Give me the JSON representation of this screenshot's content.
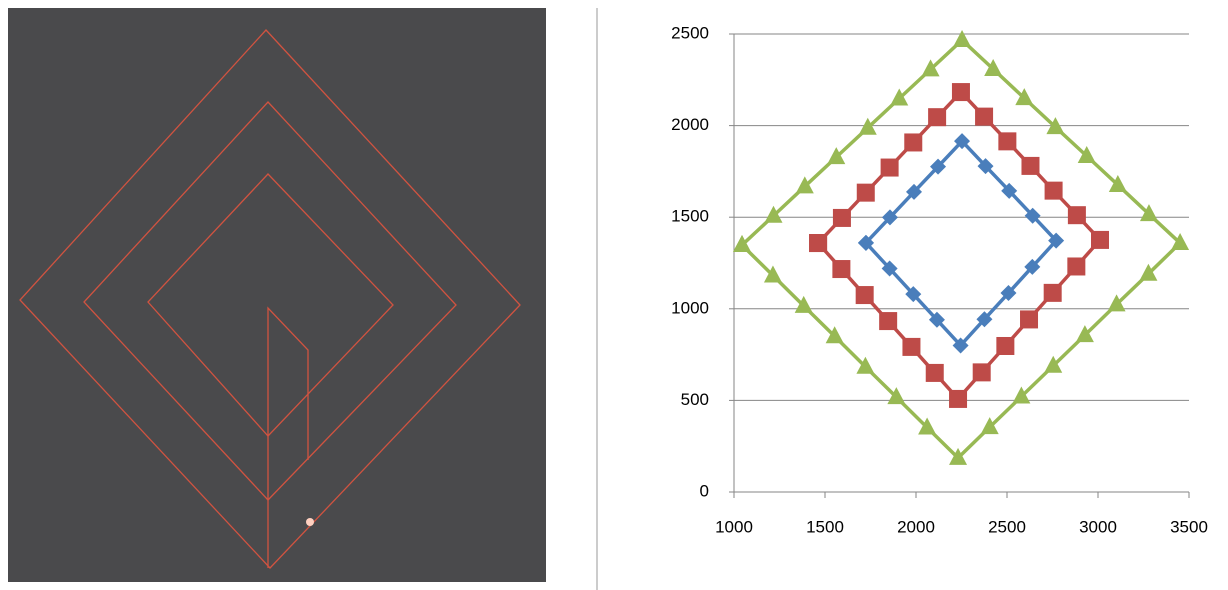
{
  "chart_data": {
    "type": "scatter",
    "xlim": [
      1000,
      3500
    ],
    "xticks": [
      1000,
      1500,
      2000,
      2500,
      3000,
      3500
    ],
    "ylim": [
      0,
      2500
    ],
    "yticks": [
      0,
      500,
      1000,
      1500,
      2000,
      2500
    ],
    "grid": true,
    "series": [
      {
        "color": "#4a7ebb",
        "marker": "diamond",
        "x": [
          1725,
          1857,
          1989,
          2121,
          2253,
          2382,
          2512,
          2641,
          2770,
          2639,
          2508,
          2376,
          2245,
          2115,
          1985,
          1855,
          1725
        ],
        "values": [
          1360,
          1499,
          1638,
          1776,
          1915,
          1779,
          1644,
          1508,
          1372,
          1229,
          1086,
          943,
          800,
          940,
          1080,
          1220,
          1360
        ]
      },
      {
        "color": "#be4b48",
        "marker": "square",
        "x": [
          1462,
          1593,
          1724,
          1855,
          1985,
          2116,
          2247,
          2374,
          2502,
          2629,
          2756,
          2884,
          3011,
          2881,
          2751,
          2621,
          2491,
          2361,
          2231,
          2103,
          1975,
          1847,
          1718,
          1590,
          1462
        ],
        "values": [
          1359,
          1496,
          1634,
          1771,
          1908,
          2046,
          2183,
          2049,
          1914,
          1780,
          1645,
          1511,
          1376,
          1231,
          1087,
          942,
          797,
          653,
          508,
          650,
          792,
          933,
          1075,
          1217,
          1359
        ]
      },
      {
        "color": "#98b954",
        "marker": "triangle",
        "x": [
          1044,
          1217,
          1389,
          1562,
          1735,
          1908,
          2080,
          2253,
          2424,
          2595,
          2766,
          2938,
          3109,
          3280,
          3451,
          3277,
          3102,
          2928,
          2754,
          2579,
          2405,
          2231,
          2061,
          1892,
          1722,
          1553,
          1383,
          1214,
          1044
        ],
        "values": [
          1348,
          1508,
          1668,
          1828,
          1988,
          2148,
          2307,
          2467,
          2309,
          2150,
          1992,
          1834,
          1676,
          1517,
          1359,
          1191,
          1024,
          856,
          689,
          521,
          354,
          186,
          352,
          518,
          684,
          850,
          1016,
          1182,
          1348
        ]
      }
    ]
  }
}
